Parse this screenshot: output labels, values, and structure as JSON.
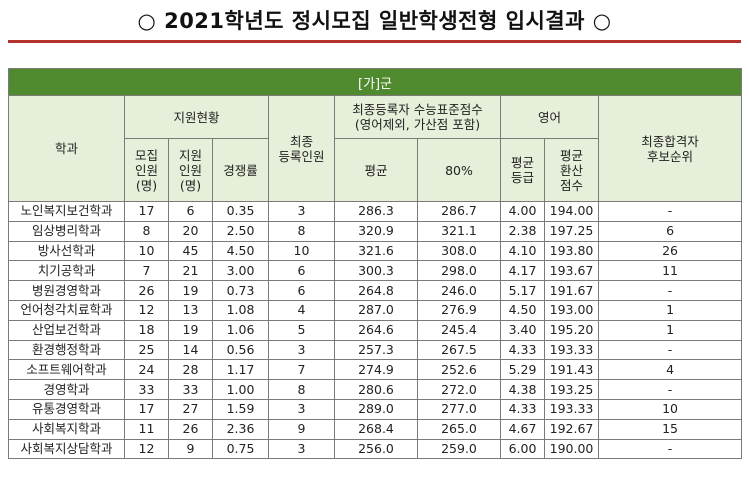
{
  "title": "○ 2021학년도 정시모집 일반학생전형 입시결과 ○",
  "group": "[가]군",
  "headers": {
    "dept": "학과",
    "support": "지원현황",
    "recruit": "모집\n인원\n(명)",
    "applicants": "지원\n인원\n(명)",
    "ratio": "경쟁률",
    "enrolled": "최종\n등록인원",
    "csat": "최종등록자 수능표준점수\n(영어제외, 가산점  포함)",
    "csat_avg": "평균",
    "csat_80": "80%",
    "english": "영어",
    "eng_grade": "평균\n등급",
    "eng_score": "평균\n환산\n점수",
    "waitlist": "최종합격자\n후보순위"
  },
  "rows": [
    {
      "dept": "노인복지보건학과",
      "recruit": "17",
      "applicants": "6",
      "ratio": "0.35",
      "enrolled": "3",
      "avg": "286.3",
      "p80": "286.7",
      "eng_grade": "4.00",
      "eng_score": "194.00",
      "wait": "-"
    },
    {
      "dept": "임상병리학과",
      "recruit": "8",
      "applicants": "20",
      "ratio": "2.50",
      "enrolled": "8",
      "avg": "320.9",
      "p80": "321.1",
      "eng_grade": "2.38",
      "eng_score": "197.25",
      "wait": "6"
    },
    {
      "dept": "방사선학과",
      "recruit": "10",
      "applicants": "45",
      "ratio": "4.50",
      "enrolled": "10",
      "avg": "321.6",
      "p80": "308.0",
      "eng_grade": "4.10",
      "eng_score": "193.80",
      "wait": "26"
    },
    {
      "dept": "치기공학과",
      "recruit": "7",
      "applicants": "21",
      "ratio": "3.00",
      "enrolled": "6",
      "avg": "300.3",
      "p80": "298.0",
      "eng_grade": "4.17",
      "eng_score": "193.67",
      "wait": "11"
    },
    {
      "dept": "병원경영학과",
      "recruit": "26",
      "applicants": "19",
      "ratio": "0.73",
      "enrolled": "6",
      "avg": "264.8",
      "p80": "246.0",
      "eng_grade": "5.17",
      "eng_score": "191.67",
      "wait": "-"
    },
    {
      "dept": "언어청각치료학과",
      "recruit": "12",
      "applicants": "13",
      "ratio": "1.08",
      "enrolled": "4",
      "avg": "287.0",
      "p80": "276.9",
      "eng_grade": "4.50",
      "eng_score": "193.00",
      "wait": "1"
    },
    {
      "dept": "산업보건학과",
      "recruit": "18",
      "applicants": "19",
      "ratio": "1.06",
      "enrolled": "5",
      "avg": "264.6",
      "p80": "245.4",
      "eng_grade": "3.40",
      "eng_score": "195.20",
      "wait": "1"
    },
    {
      "dept": "환경행정학과",
      "recruit": "25",
      "applicants": "14",
      "ratio": "0.56",
      "enrolled": "3",
      "avg": "257.3",
      "p80": "267.5",
      "eng_grade": "4.33",
      "eng_score": "193.33",
      "wait": "-"
    },
    {
      "dept": "소프트웨어학과",
      "recruit": "24",
      "applicants": "28",
      "ratio": "1.17",
      "enrolled": "7",
      "avg": "274.9",
      "p80": "252.6",
      "eng_grade": "5.29",
      "eng_score": "191.43",
      "wait": "4"
    },
    {
      "dept": "경영학과",
      "recruit": "33",
      "applicants": "33",
      "ratio": "1.00",
      "enrolled": "8",
      "avg": "280.6",
      "p80": "272.0",
      "eng_grade": "4.38",
      "eng_score": "193.25",
      "wait": "-"
    },
    {
      "dept": "유통경영학과",
      "recruit": "17",
      "applicants": "27",
      "ratio": "1.59",
      "enrolled": "3",
      "avg": "289.0",
      "p80": "277.0",
      "eng_grade": "4.33",
      "eng_score": "193.33",
      "wait": "10"
    },
    {
      "dept": "사회복지학과",
      "recruit": "11",
      "applicants": "26",
      "ratio": "2.36",
      "enrolled": "9",
      "avg": "268.4",
      "p80": "265.0",
      "eng_grade": "4.67",
      "eng_score": "192.67",
      "wait": "15"
    },
    {
      "dept": "사회복지상담학과",
      "recruit": "12",
      "applicants": "9",
      "ratio": "0.75",
      "enrolled": "3",
      "avg": "256.0",
      "p80": "259.0",
      "eng_grade": "6.00",
      "eng_score": "190.00",
      "wait": "-"
    }
  ]
}
